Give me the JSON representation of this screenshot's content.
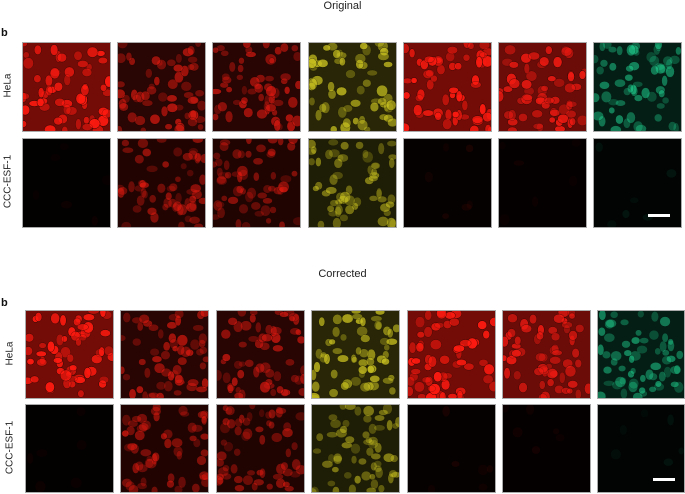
{
  "sections": [
    {
      "title": "Original",
      "panel_label": "b",
      "rows": [
        {
          "label": "HeLa",
          "panels": [
            {
              "color": "#ff1a10",
              "intensity": 0.95
            },
            {
              "color": "#d81a10",
              "intensity": 0.75
            },
            {
              "color": "#d41810",
              "intensity": 0.75
            },
            {
              "color": "#c8c020",
              "intensity": 0.8
            },
            {
              "color": "#ff1a10",
              "intensity": 0.95
            },
            {
              "color": "#f01a12",
              "intensity": 0.9
            },
            {
              "color": "#1ec88a",
              "intensity": 0.6
            }
          ]
        },
        {
          "label": "CCC-ESF-1",
          "panels": [
            {
              "color": "#ff1a10",
              "intensity": 0.04
            },
            {
              "color": "#e01a10",
              "intensity": 0.6
            },
            {
              "color": "#e01a10",
              "intensity": 0.55
            },
            {
              "color": "#c8c020",
              "intensity": 0.6
            },
            {
              "color": "#ff1a10",
              "intensity": 0.08
            },
            {
              "color": "#ff1a10",
              "intensity": 0.06
            },
            {
              "color": "#1ec88a",
              "intensity": 0.08
            }
          ]
        }
      ]
    },
    {
      "title": "Corrected",
      "panel_label": "b",
      "rows": [
        {
          "label": "HeLa",
          "panels": [
            {
              "color": "#ff1a10",
              "intensity": 0.95
            },
            {
              "color": "#e01a10",
              "intensity": 0.7
            },
            {
              "color": "#d41810",
              "intensity": 0.75
            },
            {
              "color": "#c8c020",
              "intensity": 0.8
            },
            {
              "color": "#ff1a10",
              "intensity": 0.95
            },
            {
              "color": "#f01a12",
              "intensity": 0.9
            },
            {
              "color": "#1ec88a",
              "intensity": 0.6
            }
          ]
        },
        {
          "label": "CCC-ESF-1",
          "panels": [
            {
              "color": "#ff1a10",
              "intensity": 0.04
            },
            {
              "color": "#e01a10",
              "intensity": 0.6
            },
            {
              "color": "#e01a10",
              "intensity": 0.55
            },
            {
              "color": "#c8c020",
              "intensity": 0.6
            },
            {
              "color": "#ff1a10",
              "intensity": 0.08
            },
            {
              "color": "#ff1a10",
              "intensity": 0.06
            },
            {
              "color": "#1ec88a",
              "intensity": 0.08
            }
          ]
        }
      ]
    }
  ]
}
